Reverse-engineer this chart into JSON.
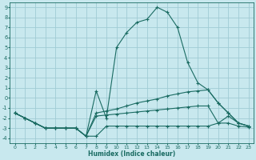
{
  "xlabel": "Humidex (Indice chaleur)",
  "background_color": "#c8e8ee",
  "grid_color": "#a0ccd4",
  "line_color": "#1a6b62",
  "xlim": [
    -0.5,
    23.5
  ],
  "ylim": [
    -4.5,
    9.5
  ],
  "xticks": [
    0,
    1,
    2,
    3,
    4,
    5,
    6,
    7,
    8,
    9,
    10,
    11,
    12,
    13,
    14,
    15,
    16,
    17,
    18,
    19,
    20,
    21,
    22,
    23
  ],
  "yticks": [
    -4,
    -3,
    -2,
    -1,
    0,
    1,
    2,
    3,
    4,
    5,
    6,
    7,
    8,
    9
  ],
  "series": [
    {
      "x": [
        0,
        1,
        2,
        3,
        4,
        5,
        6,
        7,
        8,
        9,
        10,
        11,
        12,
        13,
        14,
        15,
        16,
        17,
        18,
        19,
        20,
        21,
        22,
        23
      ],
      "y": [
        -1.5,
        -2,
        -2.5,
        -3,
        -3,
        -3,
        -3,
        -3.8,
        -3.8,
        -2.8,
        -2.8,
        -2.8,
        -2.8,
        -2.8,
        -2.8,
        -2.8,
        -2.8,
        -2.8,
        -2.8,
        -2.8,
        -2.5,
        -2.5,
        -2.8,
        -2.9
      ]
    },
    {
      "x": [
        0,
        1,
        2,
        3,
        4,
        5,
        6,
        7,
        8,
        9,
        10,
        11,
        12,
        13,
        14,
        15,
        16,
        17,
        18,
        19,
        20,
        21,
        22,
        23
      ],
      "y": [
        -1.5,
        -2,
        -2.5,
        -3,
        -3,
        -3,
        -3,
        -3.8,
        -1.8,
        -1.7,
        -1.6,
        -1.5,
        -1.4,
        -1.3,
        -1.2,
        -1.1,
        -1.0,
        -0.9,
        -0.8,
        -0.8,
        -2.5,
        -1.8,
        -2.5,
        -2.8
      ]
    },
    {
      "x": [
        0,
        1,
        2,
        3,
        4,
        5,
        6,
        7,
        8,
        9,
        10,
        11,
        12,
        13,
        14,
        15,
        16,
        17,
        18,
        19,
        20,
        21,
        22,
        23
      ],
      "y": [
        -1.5,
        -2,
        -2.5,
        -3,
        -3,
        -3,
        -3,
        -3.8,
        -1.5,
        -1.3,
        -1.1,
        -0.8,
        -0.5,
        -0.3,
        -0.1,
        0.2,
        0.4,
        0.6,
        0.7,
        0.8,
        -0.5,
        -1.5,
        -2.5,
        -2.8
      ]
    },
    {
      "x": [
        0,
        1,
        2,
        3,
        4,
        5,
        6,
        7,
        8,
        9,
        10,
        11,
        12,
        13,
        14,
        15,
        16,
        17,
        18,
        19,
        20,
        21,
        22,
        23
      ],
      "y": [
        -1.5,
        -2,
        -2.5,
        -3,
        -3,
        -3,
        -3,
        -3.8,
        0.7,
        -2,
        5.0,
        6.5,
        7.5,
        7.8,
        9.0,
        8.5,
        7.0,
        3.5,
        1.5,
        0.8,
        -0.5,
        -1.5,
        -2.5,
        -2.8
      ]
    }
  ]
}
